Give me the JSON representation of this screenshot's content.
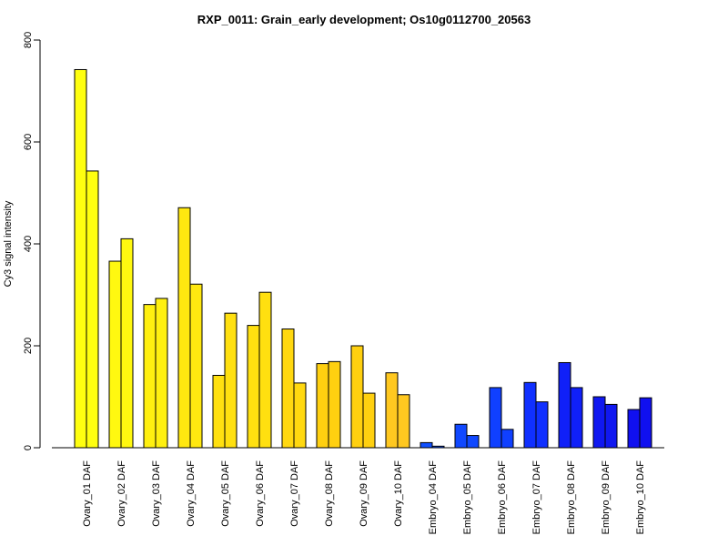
{
  "chart_data": {
    "type": "bar",
    "title": "RXP_0011: Grain_early development; Os10g0112700_20563",
    "xlabel": "",
    "ylabel": "Cy3 signal intensity",
    "ylim": [
      0,
      800
    ],
    "yticks": [
      0,
      200,
      400,
      600,
      800
    ],
    "grid": false,
    "legend": "none",
    "categories": [
      "Ovary_01 DAF",
      "Ovary_02 DAF",
      "Ovary_03 DAF",
      "Ovary_04 DAF",
      "Ovary_05 DAF",
      "Ovary_06 DAF",
      "Ovary_07 DAF",
      "Ovary_08 DAF",
      "Ovary_09 DAF",
      "Ovary_10 DAF",
      "Embryo_04 DAF",
      "Embryo_05 DAF",
      "Embryo_06 DAF",
      "Embryo_07 DAF",
      "Embryo_08 DAF",
      "Embryo_09 DAF",
      "Embryo_10 DAF"
    ],
    "series": [
      {
        "values": [
          742,
          366,
          281,
          471,
          142,
          240,
          233,
          165,
          200,
          147,
          10,
          46,
          118,
          128,
          167,
          100,
          75
        ]
      },
      {
        "values": [
          543,
          410,
          293,
          321,
          264,
          305,
          127,
          169,
          107,
          104,
          3,
          24,
          36,
          90,
          118,
          85,
          98
        ]
      }
    ],
    "colors": [
      "#FFFF10",
      "#FFF810",
      "#FFF010",
      "#FFE810",
      "#FFE010",
      "#FFE010",
      "#FFD810",
      "#FFD010",
      "#FFD010",
      "#FFC820",
      "#1050FF",
      "#1048FF",
      "#1040FF",
      "#1030FF",
      "#1020F8",
      "#1018F0",
      "#1010F0"
    ]
  }
}
